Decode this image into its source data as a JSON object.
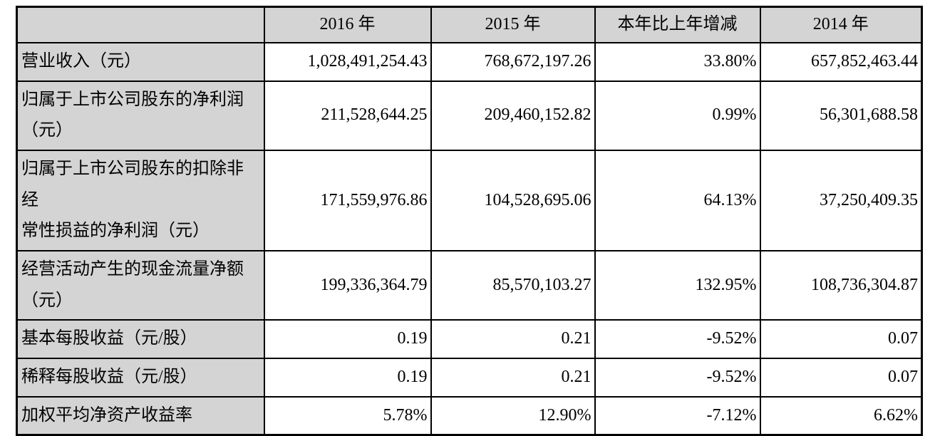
{
  "colors": {
    "shaded_cell_bg": "#d4d4d4",
    "data_cell_bg": "#ffffff",
    "border": "#000000",
    "text": "#000000"
  },
  "table": {
    "corner_label": "",
    "columns": [
      "2016 年",
      "2015 年",
      "本年比上年增减",
      "2014 年"
    ],
    "rows": [
      {
        "label": "营业收入（元）",
        "values": [
          "1,028,491,254.43",
          "768,672,197.26",
          "33.80%",
          "657,852,463.44"
        ]
      },
      {
        "label": "归属于上市公司股东的净利润\n（元）",
        "values": [
          "211,528,644.25",
          "209,460,152.82",
          "0.99%",
          "56,301,688.58"
        ]
      },
      {
        "label": "归属于上市公司股东的扣除非经\n常性损益的净利润（元）",
        "values": [
          "171,559,976.86",
          "104,528,695.06",
          "64.13%",
          "37,250,409.35"
        ]
      },
      {
        "label": "经营活动产生的现金流量净额\n（元）",
        "values": [
          "199,336,364.79",
          "85,570,103.27",
          "132.95%",
          "108,736,304.87"
        ]
      },
      {
        "label": "基本每股收益（元/股）",
        "values": [
          "0.19",
          "0.21",
          "-9.52%",
          "0.07"
        ]
      },
      {
        "label": "稀释每股收益（元/股）",
        "values": [
          "0.19",
          "0.21",
          "-9.52%",
          "0.07"
        ]
      },
      {
        "label": "加权平均净资产收益率",
        "values": [
          "5.78%",
          "12.90%",
          "-7.12%",
          "6.62%"
        ]
      }
    ]
  }
}
